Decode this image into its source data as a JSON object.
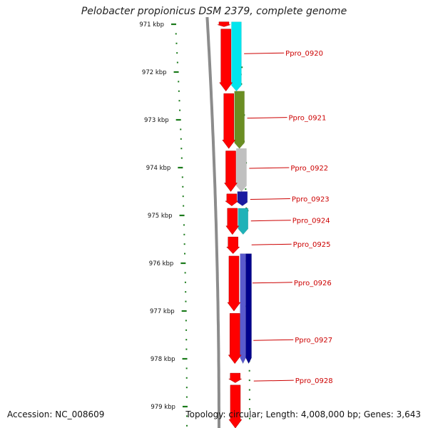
{
  "title": "Pelobacter propionicus DSM 2379, complete genome",
  "accession": "Accession: NC_008609",
  "topology": "Topology: circular; Length: 4,008,000 bp; Genes: 3,643",
  "ruler": {
    "tick_labels": [
      "971 kbp",
      "972 kbp",
      "973 kbp",
      "974 kbp",
      "975 kbp",
      "976 kbp",
      "977 kbp",
      "978 kbp",
      "979 kbp"
    ],
    "tick_color": "#1a7a1a"
  },
  "colors": {
    "gene_arrow": "#ff0000",
    "backbone": "#8c8c8c",
    "label": "#cc0000"
  },
  "chart_data": {
    "type": "genome-map",
    "axis_unit": "kbp",
    "axis_range": [
      970.95,
      979.45
    ],
    "genes": [
      {
        "locus": "Ppro_0920",
        "start": 970.95,
        "end": 972.4,
        "color": "#00e5ee"
      },
      {
        "locus": "Ppro_0921",
        "start": 972.4,
        "end": 973.6,
        "color": "#6b8e23"
      },
      {
        "locus": "Ppro_0922",
        "start": 973.6,
        "end": 974.5,
        "color": "#c0c0c0"
      },
      {
        "locus": "Ppro_0923",
        "start": 974.5,
        "end": 974.8,
        "color": "#1a1aa0"
      },
      {
        "locus": "Ppro_0924",
        "start": 974.85,
        "end": 975.4,
        "color": "#20b2b8"
      },
      {
        "locus": "Ppro_0925",
        "start": 975.4,
        "end": 975.8,
        "color": "#ffffff"
      },
      {
        "locus": "Ppro_0926",
        "start": 975.8,
        "end": 978.1,
        "color": "#5a5acd"
      },
      {
        "locus": "Ppro_0927",
        "start": 975.8,
        "end": 978.1,
        "color": "#00008b"
      },
      {
        "locus": "Ppro_0928",
        "start": 978.35,
        "end": 979.45,
        "color": "#ff0000"
      }
    ],
    "cds_arrows": [
      {
        "start": 970.95,
        "end": 971.05
      },
      {
        "start": 971.1,
        "end": 972.4
      },
      {
        "start": 972.45,
        "end": 973.6
      },
      {
        "start": 973.65,
        "end": 974.5
      },
      {
        "start": 974.55,
        "end": 974.8
      },
      {
        "start": 974.85,
        "end": 975.4
      },
      {
        "start": 975.45,
        "end": 975.8
      },
      {
        "start": 975.85,
        "end": 977.0
      },
      {
        "start": 977.05,
        "end": 978.1
      },
      {
        "start": 978.3,
        "end": 978.5
      },
      {
        "start": 978.55,
        "end": 979.45
      }
    ],
    "labels": [
      {
        "text": "Ppro_0920",
        "pos": 971.6
      },
      {
        "text": "Ppro_0921",
        "pos": 972.95
      },
      {
        "text": "Ppro_0922",
        "pos": 974.0
      },
      {
        "text": "Ppro_0923",
        "pos": 974.65
      },
      {
        "text": "Ppro_0924",
        "pos": 975.1
      },
      {
        "text": "Ppro_0925",
        "pos": 975.6
      },
      {
        "text": "Ppro_0926",
        "pos": 976.4
      },
      {
        "text": "Ppro_0927",
        "pos": 977.6
      },
      {
        "text": "Ppro_0928",
        "pos": 978.45
      }
    ]
  }
}
